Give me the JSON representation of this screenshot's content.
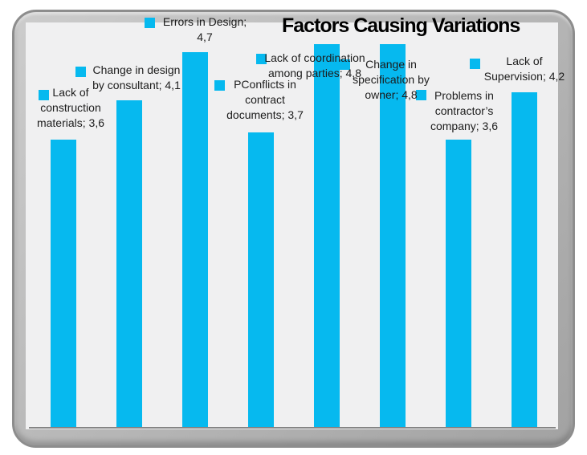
{
  "title": "Factors Causing Variations",
  "chart_data": {
    "type": "bar",
    "title": "Factors Causing Variations",
    "categories": [
      "Lack of construction materials",
      "Change in design by consultant",
      "Errors in Design",
      "PConflicts in contract documents",
      "Lack of coordination among parties",
      "Change in specification by owner",
      "Problems in contractor’s company",
      "Lack of Supervision"
    ],
    "values": [
      3.6,
      4.1,
      4.7,
      3.7,
      4.8,
      4.8,
      3.6,
      4.2
    ],
    "value_labels": [
      "3,6",
      "4,1",
      "4,7",
      "3,7",
      "4,8",
      "4,8",
      "3,6",
      "4,2"
    ],
    "decimal_separator": "comma",
    "labels": [
      [
        "Lack of",
        "construction",
        "materials; 3,6"
      ],
      [
        "Change in design",
        "by consultant; 4,1"
      ],
      [
        "Errors in Design;",
        "4,7"
      ],
      [
        "PConflicts in",
        "contract",
        "documents; 3,7"
      ],
      [
        "Lack of coordination",
        "among parties; 4,8"
      ],
      [
        "Change in",
        "specification by",
        "owner; 4,8"
      ],
      [
        "Problems in",
        "contractor’s",
        "company; 3,6"
      ],
      [
        "Lack of",
        "Supervision; 4,2"
      ]
    ],
    "ylim": [
      0,
      4.8
    ],
    "grid": false,
    "y_axis_visible": false,
    "x_axis_line_visible": true,
    "legend_position": "data-label-keys"
  },
  "colors": {
    "bar": "#06b9ef",
    "plot_background": "#f0f0f1",
    "frame_fill": "#b5b5b5",
    "frame_border": "#8d8d8d",
    "axis_line": "#858585",
    "label_text": "#1c1c1c",
    "title_text": "#000000"
  }
}
